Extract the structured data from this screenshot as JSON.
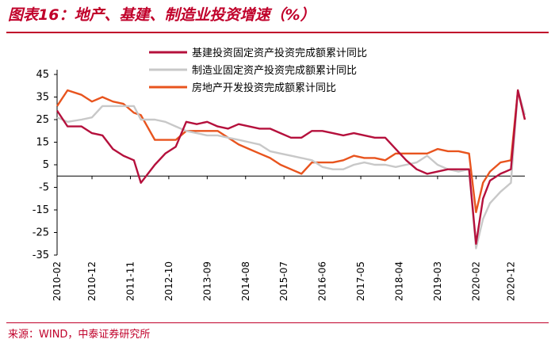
{
  "page": {
    "title": "图表16：地产、基建、制造业投资增速（%）",
    "source": "来源：WIND，中泰证券研究所"
  },
  "chart_data": {
    "type": "line",
    "title": "图表16：地产、基建、制造业投资增速（%）",
    "xlabel": "",
    "ylabel": "",
    "ylim": [
      -35,
      45
    ],
    "yticks": [
      45,
      35,
      25,
      15,
      5,
      -5,
      -15,
      -25,
      -35
    ],
    "x_range": [
      "2010-02",
      "2021-04"
    ],
    "xticks": [
      "2010-02",
      "2010-12",
      "2011-11",
      "2012-10",
      "2013-09",
      "2014-08",
      "2015-07",
      "2016-06",
      "2017-05",
      "2018-04",
      "2019-03",
      "2020-02",
      "2020-12"
    ],
    "grid": false,
    "legend_position": "top-right",
    "series": [
      {
        "name": "基建投资固定资产投资完成额累计同比",
        "color": "#b5103c",
        "x": [
          "2010-02",
          "2010-05",
          "2010-09",
          "2010-12",
          "2011-03",
          "2011-06",
          "2011-09",
          "2011-12",
          "2012-02",
          "2012-06",
          "2012-09",
          "2012-12",
          "2013-03",
          "2013-06",
          "2013-09",
          "2013-12",
          "2014-03",
          "2014-06",
          "2014-09",
          "2014-12",
          "2015-03",
          "2015-06",
          "2015-09",
          "2015-12",
          "2016-03",
          "2016-06",
          "2016-09",
          "2016-12",
          "2017-03",
          "2017-06",
          "2017-09",
          "2017-12",
          "2018-03",
          "2018-06",
          "2018-09",
          "2018-12",
          "2019-03",
          "2019-06",
          "2019-09",
          "2019-12",
          "2020-02",
          "2020-04",
          "2020-06",
          "2020-09",
          "2020-12",
          "2021-02",
          "2021-04"
        ],
        "values": [
          29,
          22,
          22,
          19,
          18,
          12,
          9,
          7,
          -3,
          5,
          10,
          13,
          24,
          23,
          24,
          22,
          21,
          23,
          22,
          21,
          21,
          19,
          17,
          17,
          20,
          20,
          19,
          18,
          19,
          18,
          17,
          17,
          12,
          7,
          3,
          1,
          2,
          3,
          3,
          3,
          -30,
          -10,
          -2,
          1,
          3,
          38,
          25
        ]
      },
      {
        "name": "制造业固定资产投资完成额累计同比",
        "color": "#c8c8c8",
        "x": [
          "2010-02",
          "2010-05",
          "2010-09",
          "2010-12",
          "2011-03",
          "2011-06",
          "2011-09",
          "2011-12",
          "2012-02",
          "2012-06",
          "2012-09",
          "2012-12",
          "2013-03",
          "2013-06",
          "2013-09",
          "2013-12",
          "2014-03",
          "2014-06",
          "2014-09",
          "2014-12",
          "2015-03",
          "2015-06",
          "2015-09",
          "2015-12",
          "2016-03",
          "2016-06",
          "2016-09",
          "2016-12",
          "2017-03",
          "2017-06",
          "2017-09",
          "2017-12",
          "2018-03",
          "2018-06",
          "2018-09",
          "2018-12",
          "2019-03",
          "2019-06",
          "2019-09",
          "2019-12",
          "2020-02",
          "2020-04",
          "2020-06",
          "2020-09",
          "2020-12",
          "2021-02",
          "2021-04"
        ],
        "values": [
          26,
          24,
          25,
          26,
          31,
          31,
          31,
          31,
          25,
          25,
          24,
          22,
          20,
          19,
          18,
          18,
          17,
          16,
          15,
          14,
          11,
          10,
          9,
          8,
          7,
          4,
          3,
          3,
          5,
          6,
          5,
          5,
          4,
          5,
          6,
          9,
          5,
          3,
          2,
          3,
          -32,
          -19,
          -12,
          -7,
          -3,
          38,
          27
        ]
      },
      {
        "name": "房地产开发投资完成额累计同比",
        "color": "#e8541e",
        "x": [
          "2010-02",
          "2010-05",
          "2010-09",
          "2010-12",
          "2011-03",
          "2011-06",
          "2011-09",
          "2011-12",
          "2012-02",
          "2012-06",
          "2012-09",
          "2012-12",
          "2013-03",
          "2013-06",
          "2013-09",
          "2013-12",
          "2014-03",
          "2014-06",
          "2014-09",
          "2014-12",
          "2015-03",
          "2015-06",
          "2015-09",
          "2015-12",
          "2016-03",
          "2016-06",
          "2016-09",
          "2016-12",
          "2017-03",
          "2017-06",
          "2017-09",
          "2017-12",
          "2018-03",
          "2018-06",
          "2018-09",
          "2018-12",
          "2019-03",
          "2019-06",
          "2019-09",
          "2019-12",
          "2020-02",
          "2020-04",
          "2020-06",
          "2020-09",
          "2020-12",
          "2021-02",
          "2021-04"
        ],
        "values": [
          31,
          38,
          36,
          33,
          35,
          33,
          32,
          28,
          27,
          16,
          16,
          16,
          20,
          20,
          20,
          20,
          17,
          14,
          12,
          10,
          8,
          5,
          3,
          1,
          6,
          6,
          6,
          7,
          9,
          8,
          8,
          7,
          10,
          10,
          10,
          10,
          12,
          11,
          11,
          10,
          -16,
          -3,
          2,
          6,
          7,
          38,
          25
        ]
      }
    ]
  }
}
